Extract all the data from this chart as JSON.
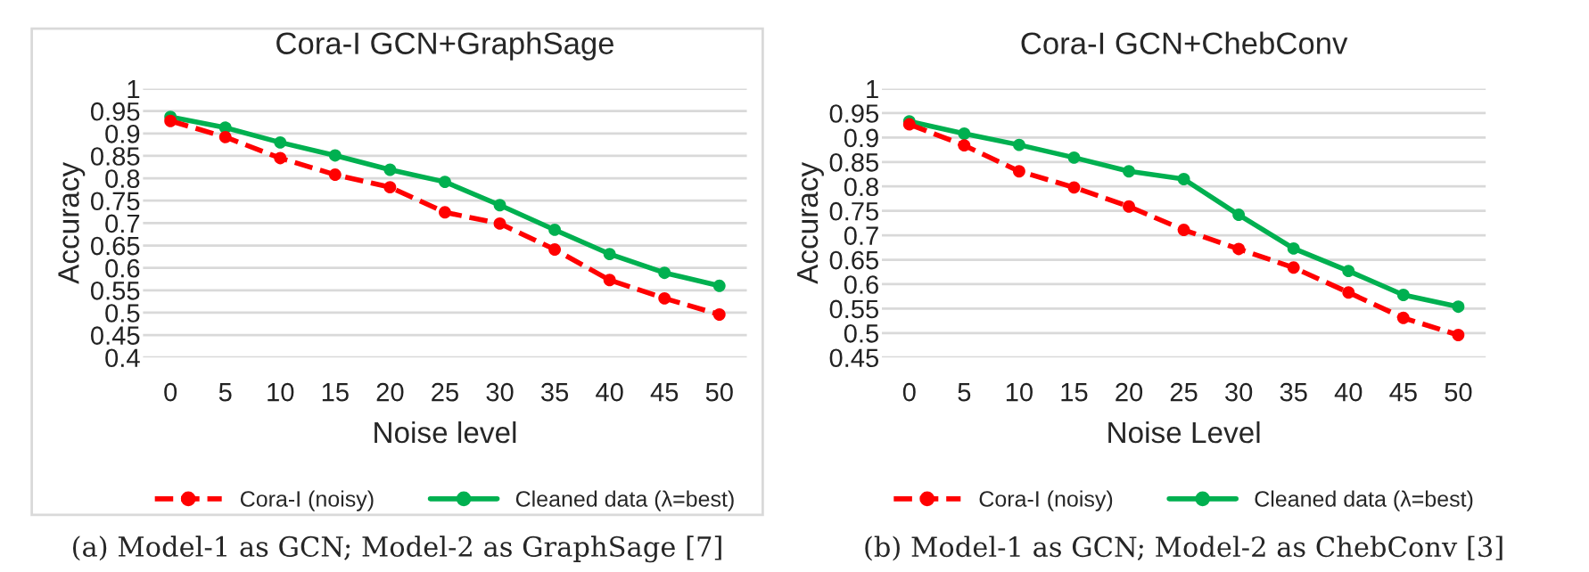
{
  "chart_data": [
    {
      "type": "line",
      "title": "Cora-I GCN+GraphSage",
      "xlabel": "Noise level",
      "ylabel": "Accuracy",
      "categories": [
        "0",
        "5",
        "10",
        "15",
        "20",
        "25",
        "30",
        "35",
        "40",
        "45",
        "50"
      ],
      "series": [
        {
          "name": "Cora-I (noisy)",
          "color": "#ff0000",
          "line_style": "dashed",
          "values": [
            0.928,
            0.892,
            0.845,
            0.808,
            0.78,
            0.724,
            0.699,
            0.641,
            0.573,
            0.532,
            0.496
          ]
        },
        {
          "name": "Cleaned data (λ=best)",
          "color": "#00b050",
          "line_style": "solid",
          "values": [
            0.937,
            0.913,
            0.88,
            0.851,
            0.819,
            0.792,
            0.74,
            0.685,
            0.631,
            0.589,
            0.56
          ]
        }
      ],
      "ylim": [
        0.4,
        1
      ],
      "yticks": [
        0.4,
        0.45,
        0.5,
        0.55,
        0.6,
        0.65,
        0.7,
        0.75,
        0.8,
        0.85,
        0.9,
        0.95,
        1
      ],
      "grid": "y",
      "legend": "bottom",
      "marker": "circle",
      "annotations": [
        "(a) Model-1 as GCN; Model-2 as GraphSage [7]"
      ]
    },
    {
      "type": "line",
      "title": "Cora-I GCN+ChebConv",
      "xlabel": "Noise Level",
      "ylabel": "Accuracy",
      "categories": [
        "0",
        "5",
        "10",
        "15",
        "20",
        "25",
        "30",
        "35",
        "40",
        "45",
        "50"
      ],
      "series": [
        {
          "name": "Cora-I (noisy)",
          "color": "#ff0000",
          "line_style": "dashed",
          "values": [
            0.927,
            0.884,
            0.831,
            0.798,
            0.759,
            0.711,
            0.672,
            0.634,
            0.583,
            0.531,
            0.496
          ]
        },
        {
          "name": "Cleaned data (λ=best)",
          "color": "#00b050",
          "line_style": "solid",
          "values": [
            0.933,
            0.908,
            0.885,
            0.859,
            0.831,
            0.815,
            0.742,
            0.673,
            0.627,
            0.578,
            0.554
          ]
        }
      ],
      "ylim": [
        0.45,
        1
      ],
      "yticks": [
        0.45,
        0.5,
        0.55,
        0.6,
        0.65,
        0.7,
        0.75,
        0.8,
        0.85,
        0.9,
        0.95,
        1
      ],
      "grid": "y",
      "legend": "bottom",
      "marker": "circle",
      "annotations": [
        "(b) Model-1 as GCN; Model-2 as ChebConv [3]"
      ]
    }
  ]
}
